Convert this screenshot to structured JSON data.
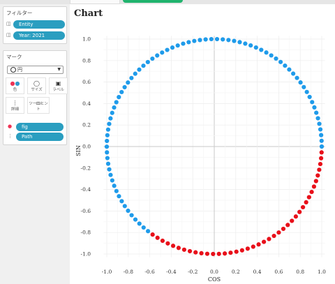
{
  "filters": {
    "title": "フィルター",
    "items": [
      {
        "label": "Entity",
        "icon": "cylinder-icon"
      },
      {
        "label": "Year: 2021",
        "icon": "cylinder-icon"
      }
    ]
  },
  "marks": {
    "title": "マーク",
    "mark_type": "円",
    "buttons": [
      {
        "label": "色",
        "icon": "color-dots-icon"
      },
      {
        "label": "サイズ",
        "icon": "size-icon"
      },
      {
        "label": "ラベル",
        "icon": "label-icon"
      },
      {
        "label": "詳細",
        "icon": "detail-icon"
      },
      {
        "label": "ツールヒント",
        "icon": "tooltip-icon"
      }
    ],
    "fields": [
      {
        "label": "fig",
        "icon": "color-dots-icon"
      },
      {
        "label": "Path",
        "icon": "detail-icon"
      }
    ]
  },
  "chart_title": "Chart",
  "chart_data": {
    "type": "scatter",
    "title": "Chart",
    "xlabel": "COS",
    "ylabel": "SIN",
    "xlim": [
      -1.05,
      1.05
    ],
    "ylim": [
      -1.05,
      1.05
    ],
    "x_ticks": [
      "-1.0",
      "-0.8",
      "-0.6",
      "-0.4",
      "-0.2",
      "0.0",
      "0.2",
      "0.4",
      "0.6",
      "0.8",
      "1.0"
    ],
    "y_ticks": [
      "1.0",
      "0.8",
      "0.6",
      "0.4",
      "0.2",
      "0.0",
      "-0.2",
      "-0.4",
      "-0.6",
      "-0.8",
      "-1.0"
    ],
    "grid": true,
    "series": [
      {
        "color": "#1f9bea",
        "angle_range_deg": [
          0,
          235
        ],
        "point_count": 77
      },
      {
        "color": "#e8101a",
        "angle_range_deg": [
          235,
          360
        ],
        "point_count": 40
      }
    ]
  },
  "colors": {
    "blue": "#1f9bea",
    "red": "#e8101a",
    "pill": "#2a9ec0"
  }
}
